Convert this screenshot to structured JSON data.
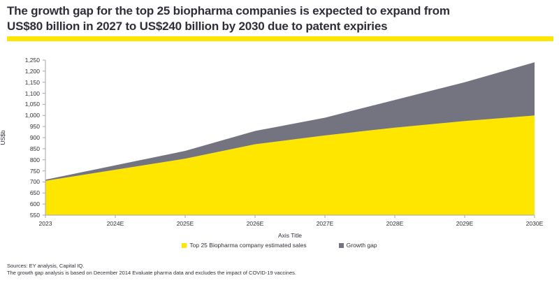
{
  "title": {
    "line1": "The growth gap for the top 25 biopharma companies is expected to expand from",
    "line2": "US$80 billion in 2027 to US$240 billion by 2030 due to patent expiries"
  },
  "colors": {
    "brand_yellow": "#FFE600",
    "gap_gray": "#747480",
    "text_dark": "#2E2E38",
    "axis_line": "#A6A6AE"
  },
  "chart_data": {
    "type": "area",
    "stacked": true,
    "categories": [
      "2023",
      "2024E",
      "2025E",
      "2026E",
      "2027E",
      "2028E",
      "2029E",
      "2030E"
    ],
    "series": [
      {
        "name": "Top 25 Biopharma company estimated sales",
        "color": "#FFE600",
        "values": [
          705,
          755,
          805,
          870,
          910,
          945,
          975,
          1000
        ]
      },
      {
        "name": "Growth gap",
        "color": "#747480",
        "values": [
          5,
          20,
          35,
          60,
          80,
          125,
          175,
          240
        ]
      }
    ],
    "stacked_totals": [
      710,
      775,
      840,
      930,
      990,
      1070,
      1150,
      1240
    ],
    "title": "",
    "xlabel": "Axis Title",
    "ylabel": "US$b",
    "ylim": [
      550,
      1250
    ],
    "ytick_step": 50,
    "grid": false,
    "legend_position": "bottom",
    "annotations": [
      "growth gap US$80 billion in 2027",
      "growth gap US$240 billion by 2030"
    ]
  },
  "footer": {
    "line1": "Sources: EY analysis, Capital IQ.",
    "line2": "The growth gap analysis is based on December 2014 Evaluate pharma data and excludes the impact of COVID-19 vaccines."
  }
}
